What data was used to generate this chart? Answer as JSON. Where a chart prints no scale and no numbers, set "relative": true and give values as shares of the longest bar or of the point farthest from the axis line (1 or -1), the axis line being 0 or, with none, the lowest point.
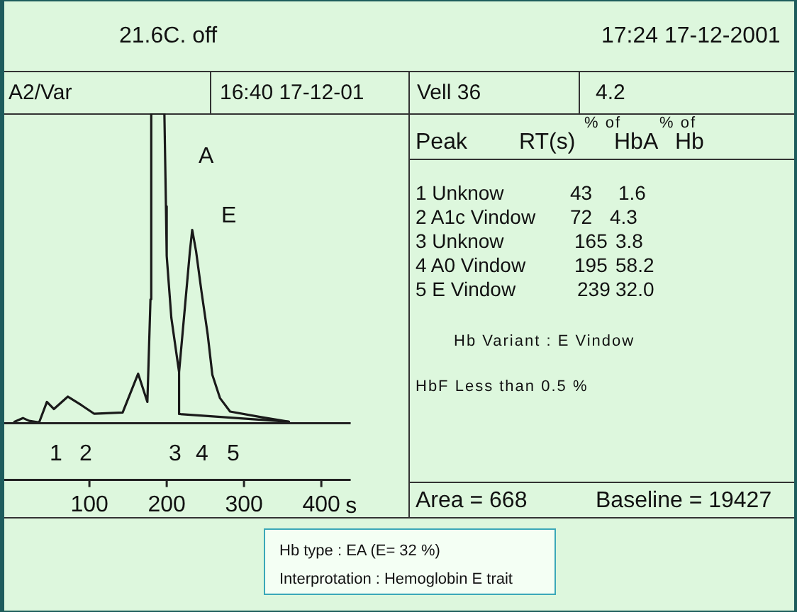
{
  "chart_data": {
    "type": "line",
    "relative": true,
    "xlabel": "s",
    "xlim": [
      -12,
      438
    ],
    "xticks": [
      100,
      200,
      300,
      400
    ],
    "marker": "none",
    "line_style": "solid",
    "legend": false,
    "grid": false,
    "series": [
      {
        "color": "#1a1a1a",
        "x": [
          3,
          14,
          22,
          35,
          45,
          54,
          72,
          90,
          106,
          143,
          163,
          175,
          179,
          180,
          197,
          199,
          200,
          206,
          216,
          224,
          230,
          233,
          238,
          245,
          253,
          259,
          269,
          282,
          322,
          358
        ],
        "values": [
          0.005,
          0.017,
          0.008,
          0.003,
          0.069,
          0.046,
          0.086,
          0.058,
          0.031,
          0.035,
          0.16,
          0.069,
          0.4,
          1,
          1,
          0.7,
          0.54,
          0.34,
          0.165,
          0.387,
          0.555,
          0.624,
          0.555,
          0.425,
          0.287,
          0.157,
          0.081,
          0.038,
          0.02,
          0.005
        ]
      },
      {
        "color": "#1a1a1a",
        "x": [
          216,
          216,
          358
        ],
        "values": [
          0.165,
          0.03,
          0.005
        ]
      }
    ],
    "annotations": [
      "A",
      "E",
      "1",
      "2",
      "3",
      "4",
      "5",
      "21.6C. off",
      "17:24 17-12-2001",
      "A2/Var",
      "16:40  17-12-01",
      "Vell 36",
      "4.2",
      "Peak",
      "RT(s)",
      "% of",
      "HbA",
      "% of",
      "Hb",
      "1  Unknow",
      "43",
      "1.6",
      "2  A1c Vindow",
      "72",
      "4.3",
      "3  Unknow",
      "165",
      "3.8",
      "4  A0 Vindow",
      "195",
      "58.2",
      "5  E Vindow",
      "239",
      "32.0",
      "Hb Variant : E Vindow",
      "HbF Less than 0.5 %",
      "Area = 668",
      "Baseline = 19427",
      "Hb type : EA (E= 32 %)",
      "Interprotation : Hemoglobin E trait"
    ]
  }
}
